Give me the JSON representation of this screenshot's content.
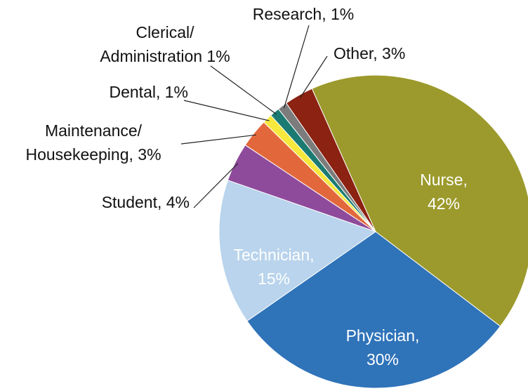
{
  "chart_data": {
    "type": "pie",
    "values": [
      42,
      30,
      15,
      4,
      3,
      1,
      1,
      1,
      3
    ],
    "value_labels": [
      "Nurse,\n42%",
      "Physician,\n30%",
      "Technician,\n15%",
      "Student, 4%",
      "Maintenance/\nHousekeeping, 3%",
      "Dental, 1%",
      "Clerical/\nAdministration 1%",
      "Research, 1%",
      "Other, 3%"
    ],
    "colors": [
      "#9c9a2c",
      "#2f73b9",
      "#b9d4ec",
      "#8f4b9b",
      "#e2683c",
      "#f6e83c",
      "#1b7b72",
      "#7c7c7c",
      "#8b2212"
    ]
  }
}
